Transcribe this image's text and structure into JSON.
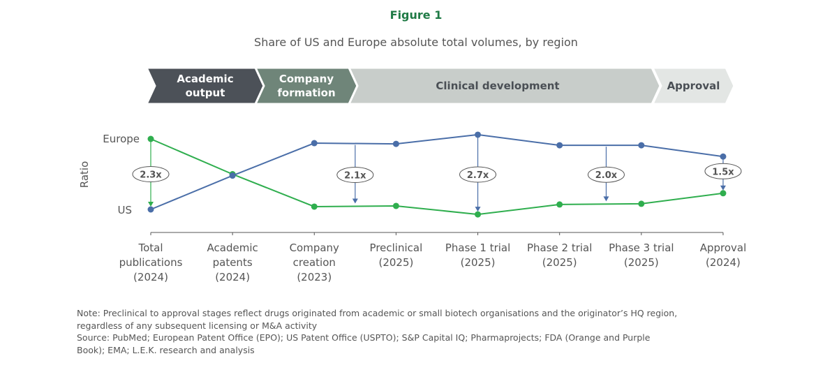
{
  "figure_label": "Figure 1",
  "chart_data": {
    "type": "line",
    "title": "Share of US and Europe absolute total volumes, by region",
    "ylabel": "Ratio",
    "y_tick_labels": {
      "top": "Europe",
      "bottom": "US"
    },
    "ylim": [
      0,
      1
    ],
    "grid": false,
    "legend": "none",
    "categories": [
      [
        "Total",
        "publications",
        "(2024)"
      ],
      [
        "Academic",
        "patents",
        "(2024)"
      ],
      [
        "Company",
        "creation",
        "(2023)"
      ],
      [
        "Preclinical",
        "(2025)"
      ],
      [
        "Phase 1 trial",
        "(2025)"
      ],
      [
        "Phase 2 trial",
        "(2025)"
      ],
      [
        "Phase 3 trial",
        "(2025)"
      ],
      [
        "Approval",
        "(2024)"
      ]
    ],
    "series": [
      {
        "color": "#4a6ea8",
        "values": [
          0.0,
          0.48,
          0.94,
          0.93,
          1.06,
          0.91,
          0.91,
          0.75
        ]
      },
      {
        "color": "#2fae4e",
        "values": [
          1.0,
          0.5,
          0.04,
          0.05,
          -0.07,
          0.07,
          0.08,
          0.23
        ]
      }
    ],
    "annotations": [
      {
        "label": "2.3x",
        "at": 0,
        "color": "#2fae4e"
      },
      {
        "label": "2.1x",
        "at": 2.5,
        "color": "#4a6ea8"
      },
      {
        "label": "2.7x",
        "at": 4,
        "color": "#4a6ea8"
      },
      {
        "label": "2.0x",
        "at": 5.57,
        "color": "#4a6ea8"
      },
      {
        "label": "1.5x",
        "at": 7,
        "color": "#4a6ea8"
      }
    ],
    "stages": [
      {
        "label": [
          "Academic",
          "output"
        ],
        "color": "#4c5158",
        "text_color": "#ffffff"
      },
      {
        "label": [
          "Company",
          "formation"
        ],
        "color": "#6f8579",
        "text_color": "#ffffff"
      },
      {
        "label": [
          "Clinical development"
        ],
        "color": "#c8cdca",
        "text_color": "#4a4f55"
      },
      {
        "label": [
          "Approval"
        ],
        "color": "#e3e6e4",
        "text_color": "#4a4f55"
      }
    ]
  },
  "note": {
    "line1": "Note: Preclinical to approval stages reflect drugs originated from academic or small biotech organisations and the originator’s HQ region,",
    "line2": "regardless of any subsequent licensing or M&A activity",
    "line3": "Source: PubMed; European Patent Office (EPO); US Patent Office (USPTO); S&P Capital IQ; Pharmaprojects; FDA (Orange and Purple",
    "line4": "Book); EMA; L.E.K. research and analysis"
  }
}
